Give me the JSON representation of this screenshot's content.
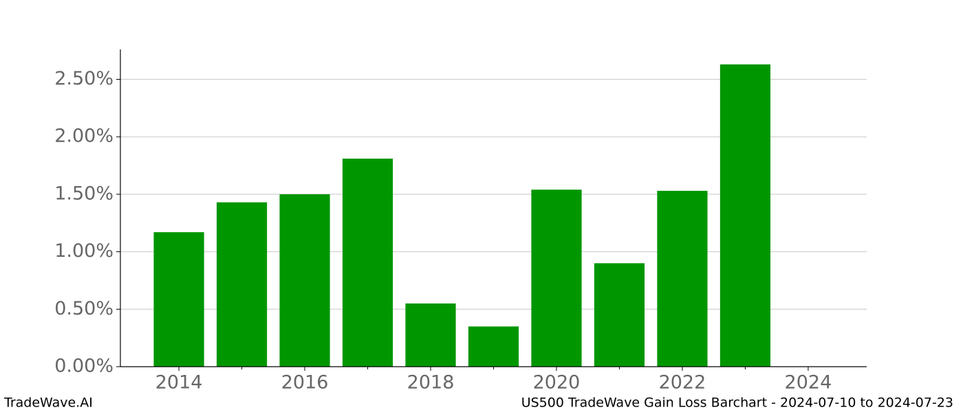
{
  "chart_data": {
    "type": "bar",
    "title": "US500 TradeWave Gain Loss Barchart - 2024-07-10 to 2024-07-23",
    "watermark": "TradeWave.AI",
    "x": [
      2014,
      2015,
      2016,
      2017,
      2018,
      2019,
      2020,
      2021,
      2022,
      2023
    ],
    "values": [
      1.17,
      1.43,
      1.5,
      1.81,
      0.55,
      0.35,
      1.54,
      0.9,
      1.53,
      2.63
    ],
    "color": "#009600",
    "xlim": [
      2013.07,
      2024.93
    ],
    "xticks": [
      2014,
      2016,
      2018,
      2020,
      2022,
      2024
    ],
    "xminorticks": [
      2015,
      2017,
      2019,
      2021,
      2023
    ],
    "ylim": [
      0,
      2.76
    ],
    "yticks": [
      {
        "value": 0,
        "label": "0.00%"
      },
      {
        "value": 0.5,
        "label": "0.50%"
      },
      {
        "value": 1,
        "label": "1.00%"
      },
      {
        "value": 1.5,
        "label": "1.50%"
      },
      {
        "value": 2,
        "label": "2.00%"
      },
      {
        "value": 2.5,
        "label": "2.50%"
      }
    ],
    "grid": true
  }
}
